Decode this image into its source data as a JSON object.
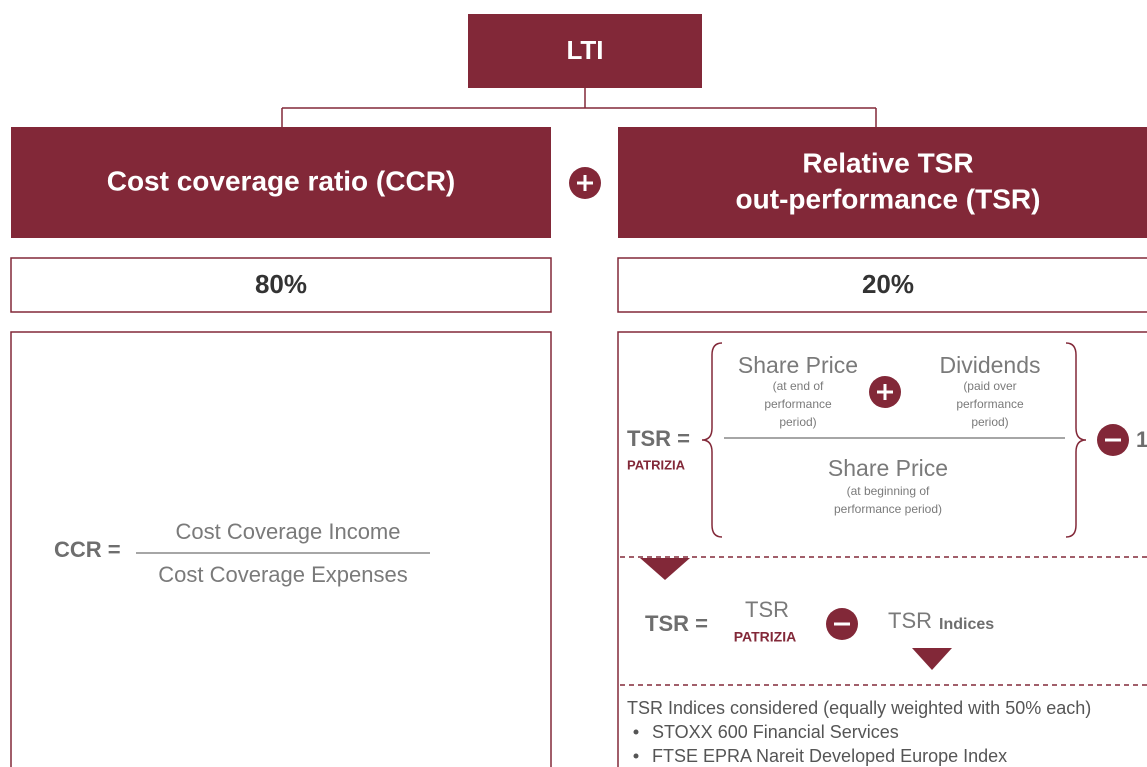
{
  "header": {
    "title": "LTI"
  },
  "left": {
    "title": "Cost coverage ratio (CCR)",
    "weight": "80%",
    "formula": {
      "label": "CCR =",
      "numerator": "Cost Coverage Income",
      "denominator": "Cost Coverage Expenses"
    }
  },
  "right": {
    "title_lines": [
      "Relative TSR",
      "out-performance (TSR)"
    ],
    "weight": "20%",
    "formula1": {
      "label": "TSR =",
      "subscript": "PATRIZIA",
      "term1": {
        "title": "Share Price",
        "note": [
          "(at end of",
          "performance",
          "period)"
        ]
      },
      "term2": {
        "title": "Dividends",
        "note": [
          "(paid over",
          "performance",
          "period)"
        ]
      },
      "denominator": {
        "title": "Share Price",
        "note": [
          "(at beginning of",
          "performance period)"
        ]
      },
      "minus_value": "1"
    },
    "formula2": {
      "label": "TSR =",
      "term1": "TSR",
      "term1_subscript": "PATRIZIA",
      "term2": "TSR",
      "term2_subscript": "Indices"
    },
    "indices": {
      "heading": "TSR Indices considered (equally weighted with 50% each)",
      "items": [
        "STOXX 600 Financial Services",
        "FTSE EPRA Nareit Developed Europe Index"
      ]
    }
  }
}
